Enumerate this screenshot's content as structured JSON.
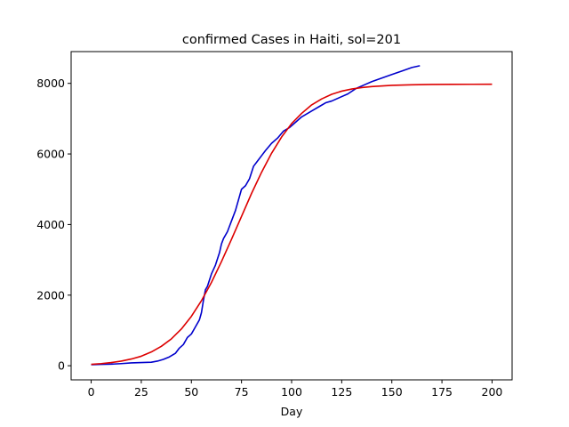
{
  "chart_data": {
    "type": "line",
    "title": "confirmed Cases in Haiti, sol=201",
    "xlabel": "Day",
    "ylabel": "",
    "xlim": [
      -10,
      210
    ],
    "ylim": [
      -400,
      8900
    ],
    "xticks": [
      0,
      25,
      50,
      75,
      100,
      125,
      150,
      175,
      200
    ],
    "yticks": [
      0,
      2000,
      4000,
      6000,
      8000
    ],
    "grid": false,
    "series": [
      {
        "color": "#0000cc",
        "x": [
          0,
          5,
          10,
          15,
          20,
          25,
          30,
          33,
          36,
          39,
          42,
          44,
          46,
          48,
          50,
          52,
          54,
          55,
          56,
          57,
          58,
          60,
          62,
          64,
          65,
          66,
          68,
          69,
          70,
          72,
          74,
          75,
          77,
          79,
          81,
          83,
          85,
          87,
          90,
          93,
          96,
          99,
          102,
          105,
          108,
          111,
          114,
          117,
          120,
          124,
          128,
          132,
          136,
          140,
          145,
          150,
          155,
          160,
          164
        ],
        "y": [
          30,
          40,
          45,
          60,
          80,
          90,
          100,
          130,
          180,
          250,
          350,
          500,
          600,
          800,
          900,
          1100,
          1300,
          1500,
          1850,
          2150,
          2250,
          2600,
          2850,
          3200,
          3450,
          3600,
          3800,
          3950,
          4100,
          4400,
          4800,
          5000,
          5100,
          5300,
          5650,
          5800,
          5950,
          6100,
          6300,
          6450,
          6650,
          6750,
          6900,
          7050,
          7150,
          7250,
          7350,
          7450,
          7500,
          7600,
          7700,
          7850,
          7950,
          8050,
          8150,
          8250,
          8350,
          8450,
          8500
        ]
      },
      {
        "color": "#dd0000",
        "x": [
          0,
          5,
          10,
          15,
          20,
          25,
          30,
          35,
          40,
          45,
          50,
          55,
          60,
          65,
          70,
          75,
          80,
          85,
          90,
          95,
          100,
          105,
          110,
          115,
          120,
          125,
          130,
          135,
          140,
          150,
          160,
          170,
          180,
          190,
          200
        ],
        "y": [
          40,
          60,
          90,
          130,
          190,
          270,
          390,
          550,
          760,
          1040,
          1400,
          1840,
          2360,
          2950,
          3580,
          4230,
          4880,
          5480,
          6020,
          6480,
          6860,
          7150,
          7390,
          7560,
          7690,
          7780,
          7840,
          7880,
          7910,
          7945,
          7960,
          7968,
          7972,
          7974,
          7975
        ]
      }
    ]
  }
}
